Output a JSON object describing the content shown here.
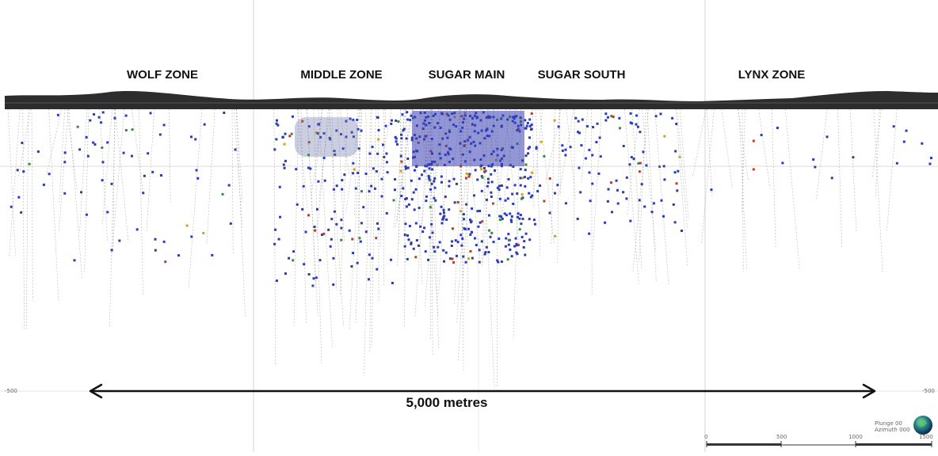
{
  "zones": [
    {
      "id": "wolf",
      "label": "WOLF ZONE"
    },
    {
      "id": "middle",
      "label": "MIDDLE ZONE"
    },
    {
      "id": "sugar-main",
      "label": "SUGAR MAIN"
    },
    {
      "id": "sugar-south",
      "label": "SUGAR SOUTH"
    },
    {
      "id": "lynx",
      "label": "LYNX ZONE"
    }
  ],
  "distance": {
    "label": "5,000 metres"
  },
  "elevation_labels": {
    "left": "-500",
    "right": "-500"
  },
  "scale_bar": {
    "ticks": [
      "0",
      "500",
      "1000",
      "1500"
    ]
  },
  "orientation": {
    "line1": "Plunge 00",
    "line2": "Azimuth 000"
  },
  "colors": {
    "terrain": "#2b2b2b",
    "intercept_primary": "#2a3bb8",
    "intercept_secondary": [
      "#c0392b",
      "#d4a017",
      "#3a8a3a"
    ],
    "drillhole": "#9a9a9a",
    "grid": "#d4d4d4"
  }
}
